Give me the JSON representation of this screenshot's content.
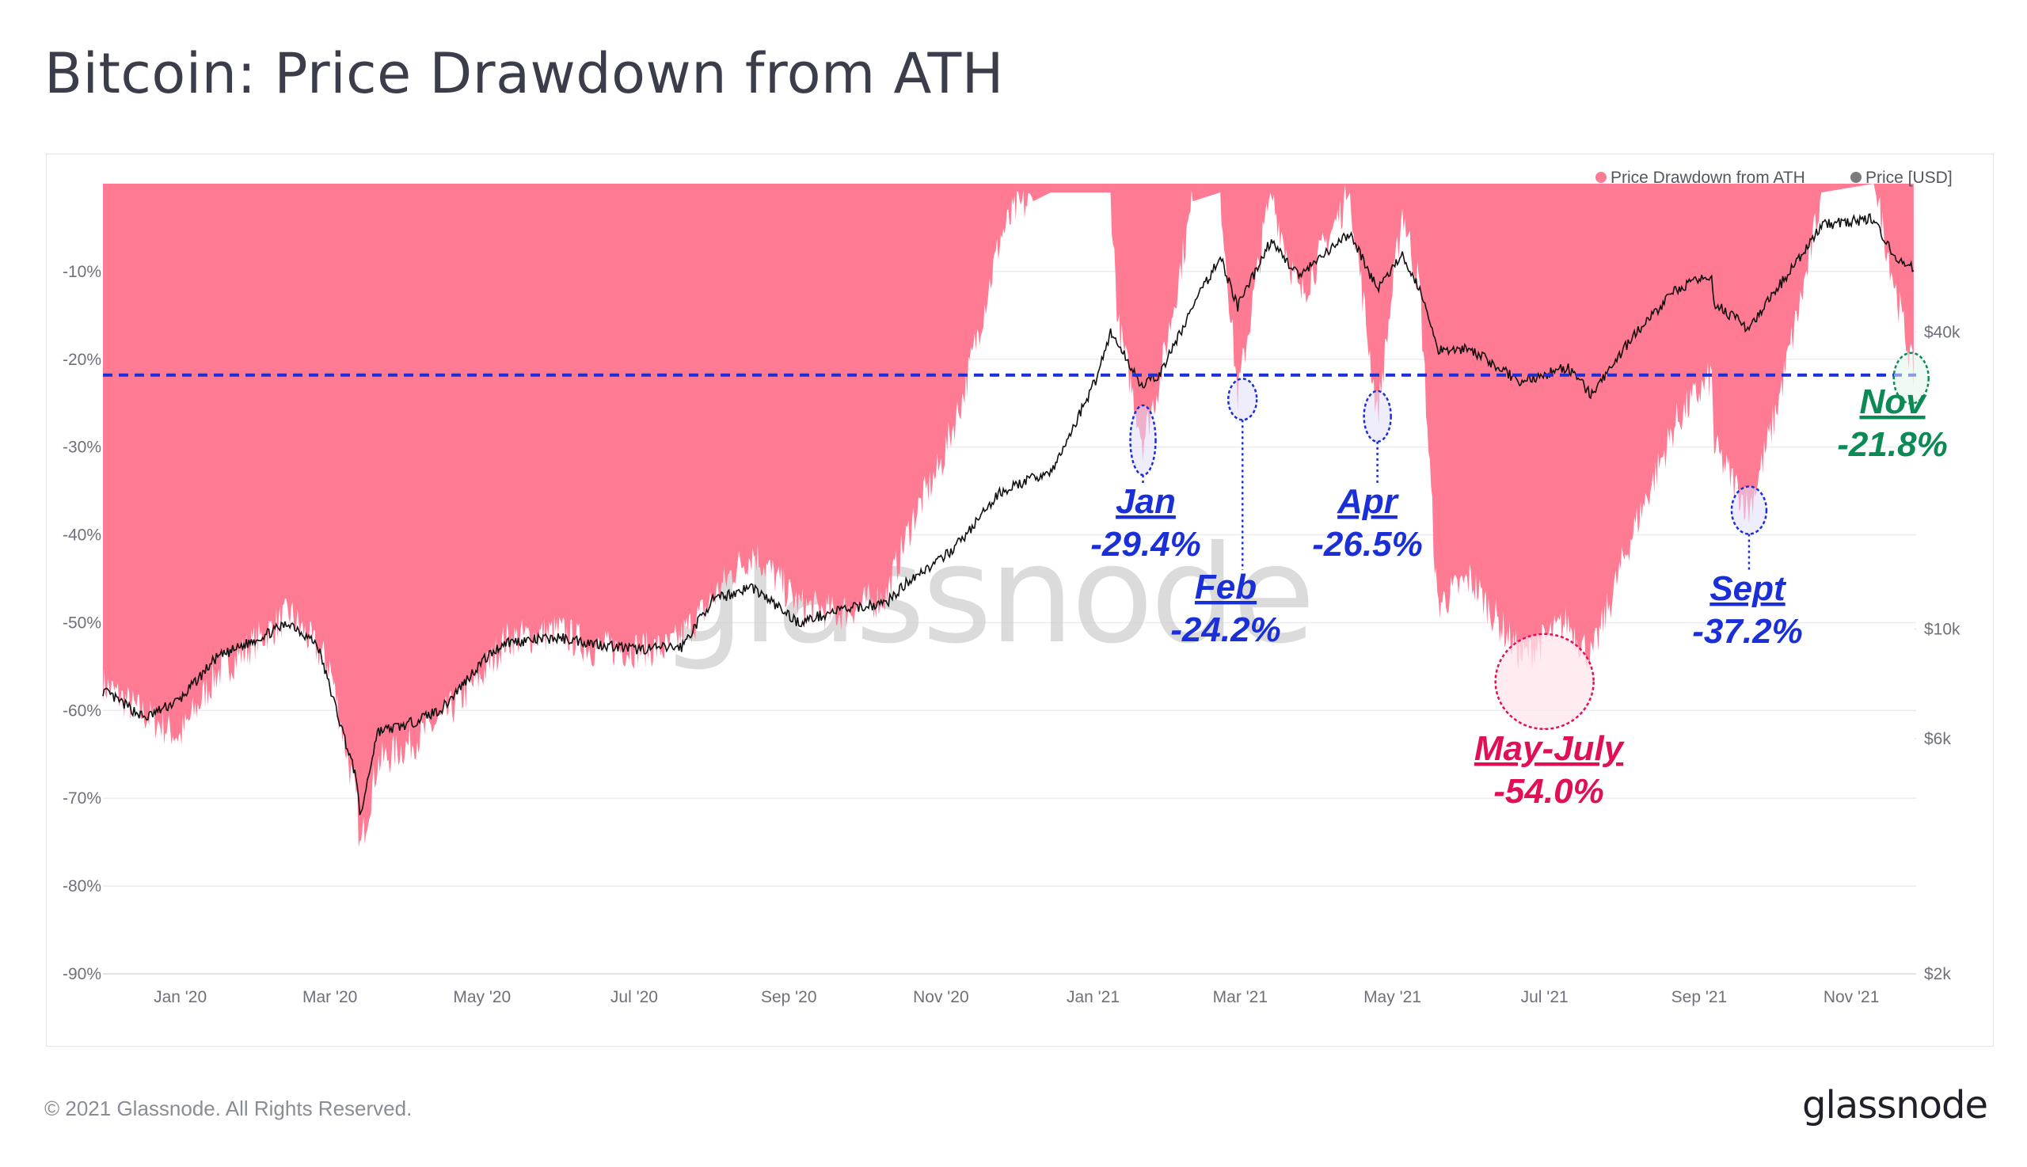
{
  "title": "Bitcoin: Price Drawdown from ATH",
  "footer": {
    "copyright": "© 2021 Glassnode. All Rights Reserved.",
    "logo": "glassnode"
  },
  "watermark": "glassnode",
  "colors": {
    "drawdown_fill": "#ff7a93",
    "price_line": "#111111",
    "reference_line": "#1a2fd6",
    "blue_annotation": "#1a2fd6",
    "red_annotation": "#e01058",
    "green_annotation": "#0c8a55"
  },
  "chart_data": {
    "type": "area",
    "legend": [
      {
        "name": "Price Drawdown from ATH",
        "color": "#ff7a93"
      },
      {
        "name": "Price [USD]",
        "color": "#7a7a7a"
      }
    ],
    "legend_position": "top-right",
    "x_ticks": [
      "Jan '20",
      "Mar '20",
      "May '20",
      "Jul '20",
      "Sep '20",
      "Nov '20",
      "Jan '21",
      "Mar '21",
      "May '21",
      "Jul '21",
      "Sep '21",
      "Nov '21"
    ],
    "x_range": [
      "2019-12-01",
      "2021-11-27"
    ],
    "y_left_ticks": [
      "-10%",
      "-20%",
      "-30%",
      "-40%",
      "-50%",
      "-60%",
      "-70%",
      "-80%",
      "-90%"
    ],
    "y_left_range": [
      -90,
      0
    ],
    "y_right_ticks": [
      "$40k",
      "$10k",
      "$6k",
      "$2k"
    ],
    "y_right_scale": "log",
    "grid": true,
    "reference_line": {
      "value": -21.8,
      "style": "dashed"
    },
    "series": [
      {
        "name": "Price Drawdown from ATH",
        "points": [
          [
            "2019-12-01",
            -57
          ],
          [
            "2019-12-15",
            -60
          ],
          [
            "2020-01-01",
            -63
          ],
          [
            "2020-01-15",
            -56
          ],
          [
            "2020-02-01",
            -52
          ],
          [
            "2020-02-14",
            -49
          ],
          [
            "2020-03-01",
            -55
          ],
          [
            "2020-03-12",
            -71
          ],
          [
            "2020-03-13",
            -76
          ],
          [
            "2020-03-20",
            -66
          ],
          [
            "2020-04-01",
            -64
          ],
          [
            "2020-04-15",
            -61
          ],
          [
            "2020-05-01",
            -56
          ],
          [
            "2020-05-10",
            -52
          ],
          [
            "2020-06-01",
            -51
          ],
          [
            "2020-06-15",
            -53
          ],
          [
            "2020-07-01",
            -53
          ],
          [
            "2020-07-15",
            -53
          ],
          [
            "2020-07-28",
            -49
          ],
          [
            "2020-08-10",
            -44
          ],
          [
            "2020-08-18",
            -42
          ],
          [
            "2020-09-05",
            -48
          ],
          [
            "2020-09-20",
            -49
          ],
          [
            "2020-10-10",
            -47
          ],
          [
            "2020-10-21",
            -38
          ],
          [
            "2020-11-01",
            -32
          ],
          [
            "2020-11-10",
            -24
          ],
          [
            "2020-11-20",
            -12
          ],
          [
            "2020-11-25",
            -6
          ],
          [
            "2020-12-01",
            -3
          ],
          [
            "2020-12-15",
            -1
          ],
          [
            "2021-01-02",
            -1
          ],
          [
            "2021-01-08",
            -1
          ],
          [
            "2021-01-11",
            -16
          ],
          [
            "2021-01-21",
            -29.4
          ],
          [
            "2021-01-28",
            -22
          ],
          [
            "2021-02-10",
            -2
          ],
          [
            "2021-02-21",
            -1
          ],
          [
            "2021-02-28",
            -24.2
          ],
          [
            "2021-03-13",
            -1
          ],
          [
            "2021-03-25",
            -13
          ],
          [
            "2021-04-14",
            -1
          ],
          [
            "2021-04-25",
            -26.5
          ],
          [
            "2021-05-05",
            -3
          ],
          [
            "2021-05-12",
            -12
          ],
          [
            "2021-05-19",
            -48
          ],
          [
            "2021-06-01",
            -45
          ],
          [
            "2021-06-22",
            -54
          ],
          [
            "2021-07-10",
            -50
          ],
          [
            "2021-07-20",
            -54.0
          ],
          [
            "2021-08-05",
            -40
          ],
          [
            "2021-08-23",
            -27
          ],
          [
            "2021-09-06",
            -22
          ],
          [
            "2021-09-07",
            -30
          ],
          [
            "2021-09-21",
            -37.2
          ],
          [
            "2021-10-01",
            -27
          ],
          [
            "2021-10-15",
            -9
          ],
          [
            "2021-10-20",
            -1
          ],
          [
            "2021-11-10",
            0
          ],
          [
            "2021-11-18",
            -11
          ],
          [
            "2021-11-26",
            -21.8
          ]
        ]
      },
      {
        "name": "Price [USD]",
        "points": [
          [
            "2019-12-01",
            7500
          ],
          [
            "2019-12-18",
            6600
          ],
          [
            "2020-01-01",
            7200
          ],
          [
            "2020-01-15",
            8700
          ],
          [
            "2020-02-14",
            10300
          ],
          [
            "2020-02-25",
            9300
          ],
          [
            "2020-03-12",
            4900
          ],
          [
            "2020-03-13",
            4100
          ],
          [
            "2020-03-20",
            6200
          ],
          [
            "2020-04-01",
            6400
          ],
          [
            "2020-04-15",
            6900
          ],
          [
            "2020-05-01",
            8600
          ],
          [
            "2020-05-10",
            9400
          ],
          [
            "2020-06-01",
            9600
          ],
          [
            "2020-07-01",
            9100
          ],
          [
            "2020-07-20",
            9200
          ],
          [
            "2020-08-01",
            11400
          ],
          [
            "2020-08-17",
            12200
          ],
          [
            "2020-09-05",
            10300
          ],
          [
            "2020-09-20",
            10900
          ],
          [
            "2020-10-10",
            11300
          ],
          [
            "2020-10-21",
            12800
          ],
          [
            "2020-11-01",
            13800
          ],
          [
            "2020-11-10",
            15300
          ],
          [
            "2020-11-25",
            19000
          ],
          [
            "2020-12-16",
            21000
          ],
          [
            "2021-01-02",
            32000
          ],
          [
            "2021-01-08",
            40000
          ],
          [
            "2021-01-21",
            31000
          ],
          [
            "2021-01-28",
            33000
          ],
          [
            "2021-02-10",
            45000
          ],
          [
            "2021-02-21",
            57000
          ],
          [
            "2021-02-28",
            45000
          ],
          [
            "2021-03-13",
            61000
          ],
          [
            "2021-03-25",
            52000
          ],
          [
            "2021-04-14",
            63500
          ],
          [
            "2021-04-25",
            49000
          ],
          [
            "2021-05-05",
            57000
          ],
          [
            "2021-05-12",
            49000
          ],
          [
            "2021-05-19",
            37000
          ],
          [
            "2021-06-01",
            37000
          ],
          [
            "2021-06-22",
            31600
          ],
          [
            "2021-07-10",
            34000
          ],
          [
            "2021-07-20",
            29800
          ],
          [
            "2021-08-05",
            39000
          ],
          [
            "2021-08-23",
            49000
          ],
          [
            "2021-09-06",
            52000
          ],
          [
            "2021-09-07",
            46000
          ],
          [
            "2021-09-21",
            40500
          ],
          [
            "2021-10-01",
            48000
          ],
          [
            "2021-10-15",
            60000
          ],
          [
            "2021-10-20",
            66000
          ],
          [
            "2021-11-10",
            68000
          ],
          [
            "2021-11-18",
            57000
          ],
          [
            "2021-11-26",
            54000
          ]
        ]
      }
    ],
    "annotations": [
      {
        "month": "Jan",
        "value": "-29.4%",
        "date": "2021-01-21",
        "y": -29.4,
        "color": "#1a2fd6"
      },
      {
        "month": "Feb",
        "value": "-24.2%",
        "date": "2021-02-28",
        "y": -24.2,
        "color": "#1a2fd6"
      },
      {
        "month": "Apr",
        "value": "-26.5%",
        "date": "2021-04-25",
        "y": -26.5,
        "color": "#1a2fd6"
      },
      {
        "month": "May-July",
        "value": "-54.0%",
        "date": "2021-07-01",
        "y": -54.0,
        "color": "#e01058"
      },
      {
        "month": "Sept",
        "value": "-37.2%",
        "date": "2021-09-21",
        "y": -37.2,
        "color": "#1a2fd6"
      },
      {
        "month": "Nov",
        "value": "-21.8%",
        "date": "2021-11-25",
        "y": -21.8,
        "color": "#0c8a55"
      }
    ]
  }
}
